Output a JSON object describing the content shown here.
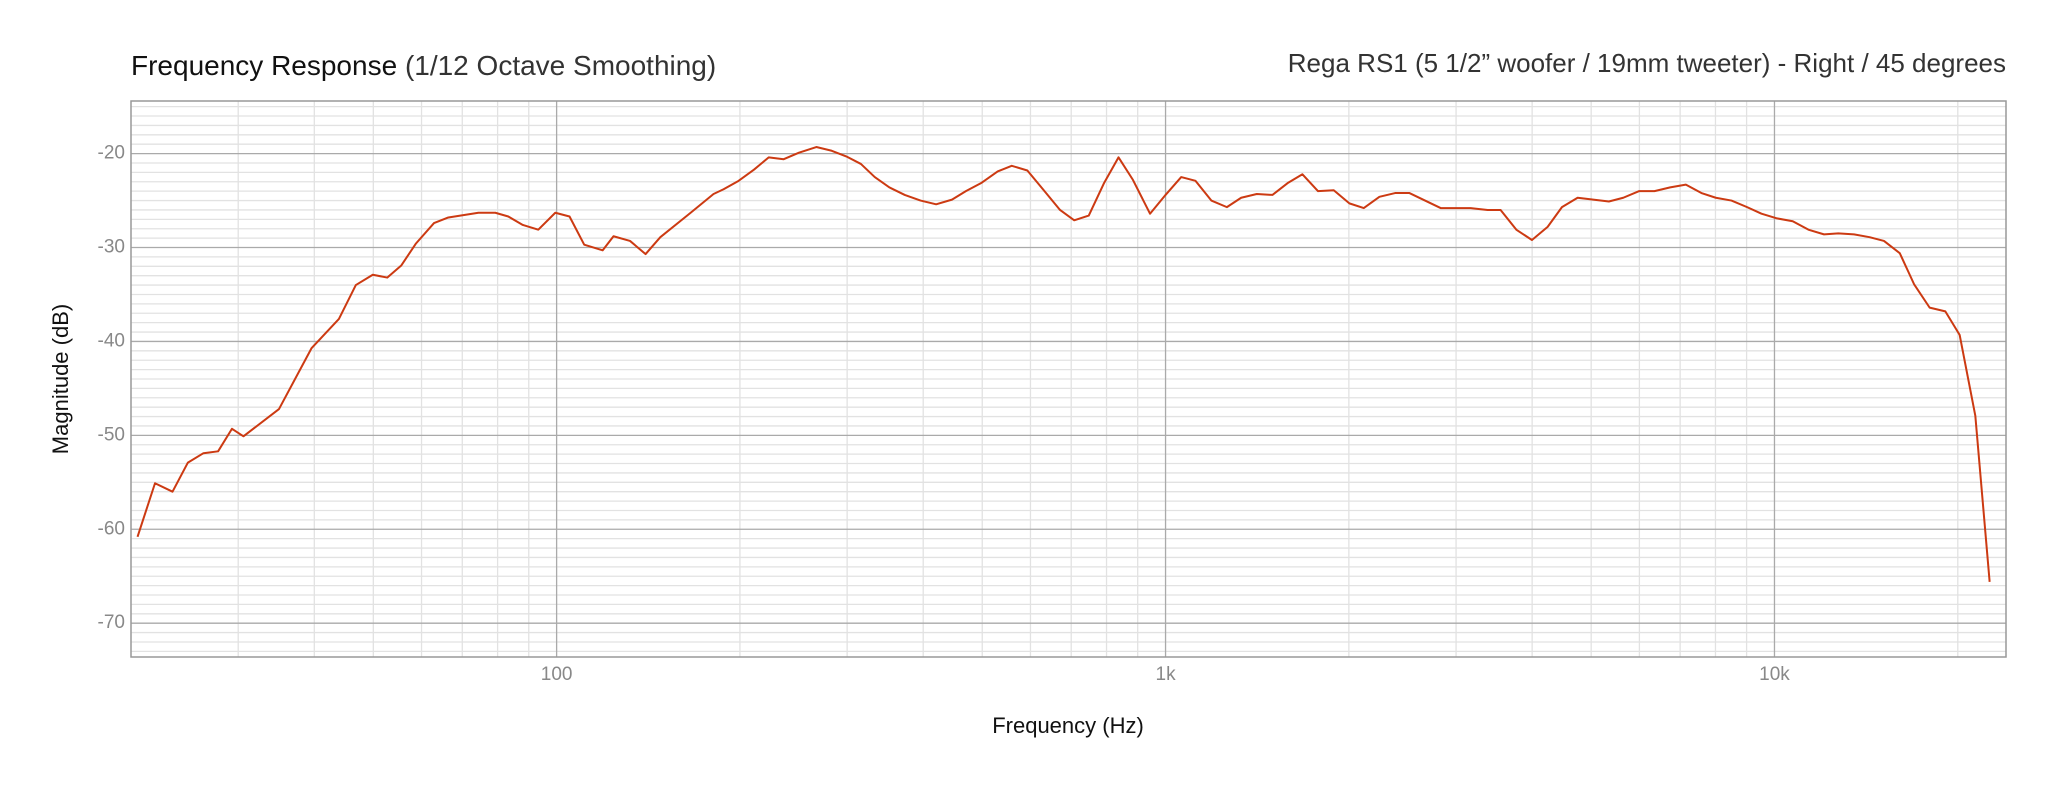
{
  "chart_data": {
    "type": "line",
    "title": "Frequency Response",
    "title_note": "(1/12 Octave Smoothing)",
    "subtitle": "Rega RS1 (5 1/2” woofer / 19mm tweeter) - Right / 45 degrees",
    "x_label": "Frequency (Hz)",
    "y_label": "Magnitude (dB)",
    "x_scale": "log",
    "grid": true,
    "xlim": [
      20,
      24000
    ],
    "ylim": [
      -73.6,
      -14.4
    ],
    "xticks": [
      100,
      {
        "value": 1000,
        "label": "1k"
      },
      {
        "value": 10000,
        "label": "10k"
      }
    ],
    "xminor": [
      30,
      40,
      50,
      60,
      70,
      80,
      90,
      200,
      300,
      400,
      500,
      600,
      700,
      800,
      900,
      2000,
      3000,
      4000,
      5000,
      6000,
      7000,
      8000,
      9000,
      20000
    ],
    "yticks": [
      -70,
      -60,
      -50,
      -40,
      -30,
      -20
    ],
    "yminor": [
      -73,
      -72,
      -71,
      -69,
      -68,
      -67,
      -66,
      -65,
      -64,
      -63,
      -62,
      -61,
      -59,
      -58,
      -57,
      -56,
      -55,
      -54,
      -53,
      -52,
      -51,
      -49,
      -48,
      -47,
      -46,
      -45,
      -44,
      -43,
      -42,
      -41,
      -39,
      -38,
      -37,
      -36,
      -35,
      -34,
      -33,
      -32,
      -31,
      -29,
      -28,
      -27,
      -26,
      -25,
      -24,
      -23,
      -22,
      -21,
      -19,
      -18,
      -17,
      -16,
      -15
    ],
    "x": [
      20.5,
      21.9,
      23.4,
      24.8,
      26.3,
      27.8,
      29.3,
      30.6,
      35,
      39.6,
      43.9,
      46.8,
      49.9,
      52.7,
      55.6,
      58.7,
      62.9,
      66.4,
      74.4,
      79.3,
      83.3,
      88,
      93.3,
      99.5,
      105,
      111,
      119,
      124,
      132,
      140,
      148,
      166,
      181,
      188,
      199,
      211,
      223,
      236,
      250,
      267,
      283,
      299,
      316,
      333,
      352,
      373,
      396,
      420,
      446,
      470,
      499,
      530,
      559,
      593,
      629,
      671,
      708,
      748,
      793,
      837,
      884,
      943,
      1000,
      1061,
      1120,
      1189,
      1261,
      1331,
      1412,
      1498,
      1590,
      1678,
      1780,
      1889,
      2004,
      2116,
      2245,
      2382,
      2515,
      2830,
      3170,
      3380,
      3550,
      3767,
      3997,
      4241,
      4477,
      4750,
      5040,
      5346,
      5645,
      5989,
      6353,
      6741,
      7152,
      7586,
      8010,
      8499,
      9016,
      9520,
      10100,
      10715,
      11368,
      12060,
      12730,
      13510,
      14330,
      15130,
      16060,
      16950,
      17980,
      19080,
      20140,
      21370,
      22560
    ],
    "series": [
      {
        "color": "#cc3a12",
        "values": [
          -60.8,
          -55.1,
          -56.0,
          -52.9,
          -51.9,
          -51.7,
          -49.3,
          -50.1,
          -47.2,
          -40.7,
          -37.6,
          -34.0,
          -32.9,
          -33.2,
          -31.9,
          -29.6,
          -27.4,
          -26.8,
          -26.3,
          -26.3,
          -26.7,
          -27.6,
          -28.1,
          -26.3,
          -26.7,
          -29.7,
          -30.3,
          -28.8,
          -29.3,
          -30.7,
          -28.9,
          -26.3,
          -24.3,
          -23.8,
          -22.9,
          -21.7,
          -20.4,
          -20.6,
          -19.9,
          -19.3,
          -19.7,
          -20.3,
          -21.1,
          -22.5,
          -23.6,
          -24.4,
          -25.0,
          -25.4,
          -24.9,
          -24.0,
          -23.1,
          -21.9,
          -21.3,
          -21.8,
          -23.8,
          -26.0,
          -27.1,
          -26.6,
          -23.1,
          -20.4,
          -22.8,
          -26.4,
          -24.4,
          -22.5,
          -22.9,
          -25.0,
          -25.7,
          -24.7,
          -24.3,
          -24.4,
          -23.1,
          -22.2,
          -24.0,
          -23.9,
          -25.3,
          -25.8,
          -24.6,
          -24.2,
          -24.2,
          -25.8,
          -25.8,
          -26.0,
          -26.0,
          -28.1,
          -29.2,
          -27.8,
          -25.7,
          -24.7,
          -24.9,
          -25.1,
          -24.7,
          -24.0,
          -24.0,
          -23.6,
          -23.3,
          -24.2,
          -24.7,
          -25.0,
          -25.7,
          -26.4,
          -26.9,
          -27.2,
          -28.1,
          -28.6,
          -28.5,
          -28.6,
          -28.9,
          -29.3,
          -30.6,
          -33.9,
          -36.4,
          -36.8,
          -39.3,
          -47.9,
          -65.6
        ]
      }
    ]
  }
}
